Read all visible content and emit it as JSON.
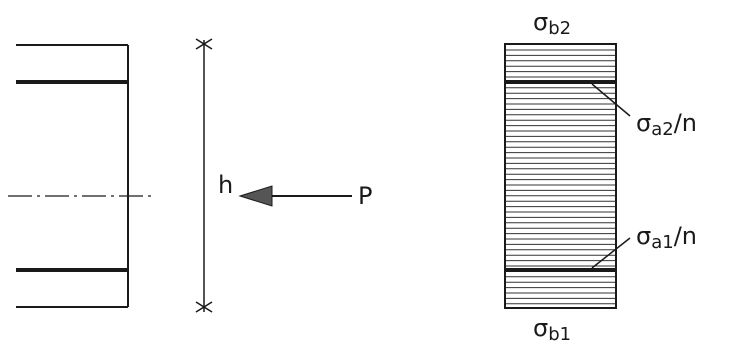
{
  "labels": {
    "height": "h",
    "load": "P",
    "sigma_b2": {
      "sym": "σ",
      "sub": "b2"
    },
    "sigma_b1": {
      "sym": "σ",
      "sub": "b1"
    },
    "sigma_a2_n": {
      "sym": "σ",
      "sub": "a2",
      "suffix": "/n"
    },
    "sigma_a1_n": {
      "sym": "σ",
      "sub": "a1",
      "suffix": "/n"
    }
  },
  "colors": {
    "ink": "#1a1a1a",
    "hatch": "#333333",
    "arrowhead": "#555555",
    "background": "#ffffff"
  }
}
